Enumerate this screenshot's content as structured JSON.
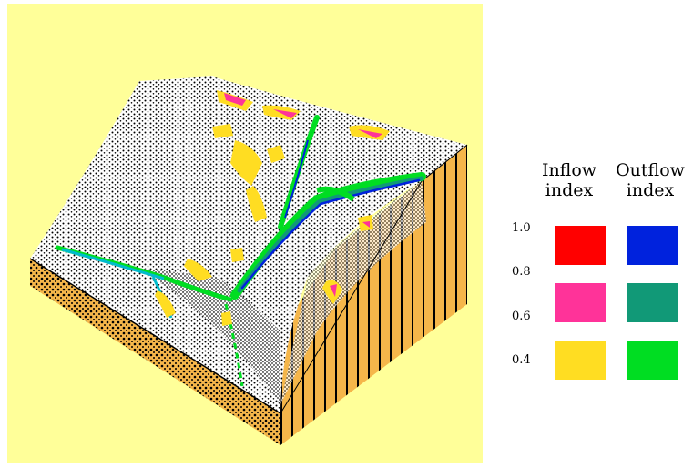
{
  "legend": {
    "inflow_header": {
      "line1": "Inflow",
      "line2": "index"
    },
    "outflow_header": {
      "line1": "Outflow",
      "line2": "index"
    },
    "tick_labels": [
      "1.0",
      "0.8",
      "0.6",
      "0.4"
    ],
    "inflow_swatches": [
      {
        "value": "1.0",
        "color": "#ff0000"
      },
      {
        "value": "0.6",
        "color": "#ff3399"
      },
      {
        "value": "0.4",
        "color": "#ffdd22"
      }
    ],
    "outflow_swatches": [
      {
        "value": "1.0",
        "color": "#0022dd"
      },
      {
        "value": "0.6",
        "color": "#119977"
      },
      {
        "value": "0.4",
        "color": "#00dd22"
      }
    ]
  },
  "colors": {
    "background": "#ffff99",
    "terrain_surface": "#ffffff",
    "terrain_side": "#f5b64a",
    "mesh": "#000000"
  }
}
